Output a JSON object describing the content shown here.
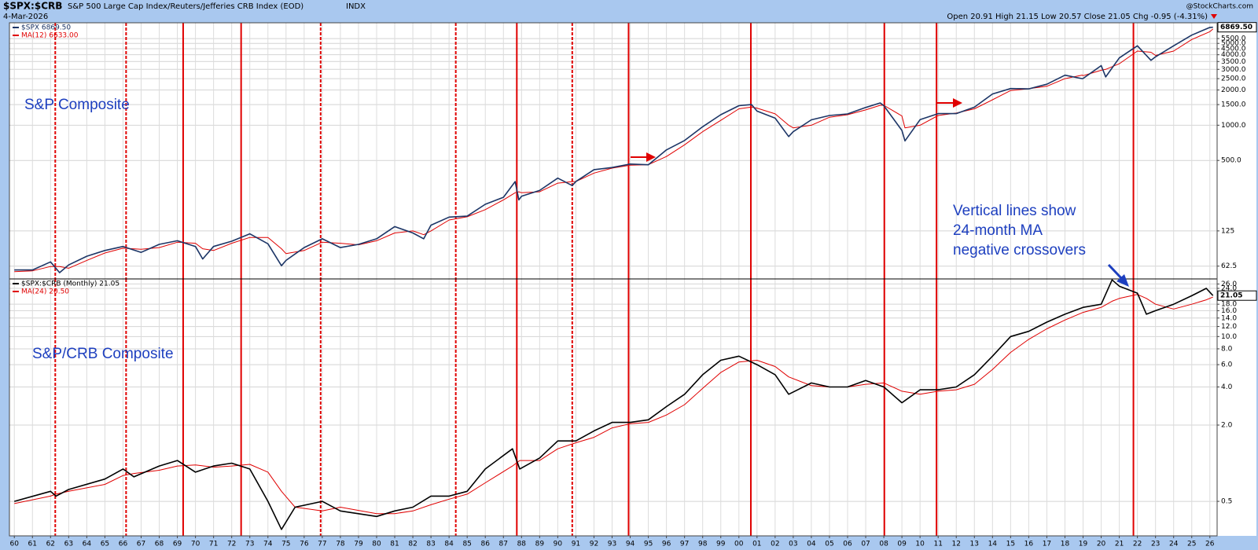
{
  "header": {
    "symbol": "$SPX:$CRB",
    "description": "S&P 500 Large Cap Index/Reuters/Jefferies CRB Index (EOD)",
    "exchange": "INDX",
    "date": "4-Mar-2026",
    "watermark": "@StockCharts.com",
    "quote": "Open 20.91 High 21.15 Low 20.57 Close 21.05 Chg -0.95 (-4.31%)"
  },
  "chart_data": [
    {
      "type": "line",
      "log_scale": true,
      "grid": true,
      "annotations": [
        "S&P Composite"
      ],
      "x": [
        1960,
        1961,
        1962,
        1962.5,
        1963,
        1964,
        1965,
        1966,
        1967,
        1968,
        1969,
        1970,
        1970.4,
        1971,
        1972,
        1973,
        1974,
        1974.75,
        1975,
        1976,
        1977,
        1978,
        1979,
        1980,
        1981,
        1982,
        1982.6,
        1983,
        1984,
        1985,
        1986,
        1987,
        1987.65,
        1987.85,
        1988,
        1989,
        1990,
        1990.8,
        1991,
        1992,
        1993,
        1994,
        1995,
        1996,
        1997,
        1998,
        1999,
        2000,
        2000.7,
        2001,
        2002,
        2002.75,
        2003,
        2004,
        2005,
        2006,
        2007,
        2007.8,
        2008,
        2009,
        2009.17,
        2010,
        2011,
        2012,
        2013,
        2014,
        2015,
        2016,
        2017,
        2018,
        2018.95,
        2019,
        2020,
        2020.25,
        2021,
        2022,
        2022.75,
        2023,
        2024,
        2025,
        2026,
        2026.17
      ],
      "series": [
        {
          "name": "$SPX 6869.50",
          "color": "#1c3566",
          "values": [
            58,
            58,
            68,
            55,
            64,
            76,
            85,
            92,
            82,
            96,
            103,
            92,
            72,
            92,
            102,
            118,
            97,
            63,
            70,
            90,
            107,
            90,
            96,
            107,
            136,
            120,
            107,
            140,
            164,
            167,
            211,
            242,
            330,
            230,
            247,
            277,
            353,
            305,
            330,
            417,
            435,
            466,
            459,
            615,
            740,
            970,
            1229,
            1469,
            1500,
            1320,
            1148,
            800,
            880,
            1111,
            1211,
            1248,
            1418,
            1550,
            1468,
            903,
            735,
            1115,
            1257,
            1257,
            1426,
            1848,
            2058,
            2043,
            2238,
            2673,
            2500,
            2506,
            3230,
            2585,
            3756,
            4766,
            3585,
            3839,
            4769,
            5881,
            6845,
            6869.5
          ]
        },
        {
          "name": "MA(12) 6633.00",
          "color": "#e00000",
          "values": [
            56,
            57,
            62,
            62,
            60,
            70,
            81,
            89,
            87,
            90,
            100,
            98,
            88,
            85,
            98,
            110,
            110,
            88,
            80,
            85,
            100,
            98,
            95,
            103,
            120,
            125,
            116,
            125,
            155,
            165,
            190,
            230,
            265,
            270,
            265,
            270,
            320,
            330,
            330,
            390,
            430,
            455,
            460,
            540,
            680,
            880,
            1100,
            1380,
            1430,
            1400,
            1250,
            1000,
            950,
            1000,
            1170,
            1230,
            1350,
            1480,
            1480,
            1200,
            950,
            1000,
            1210,
            1270,
            1380,
            1650,
            1980,
            2050,
            2150,
            2500,
            2680,
            2650,
            2950,
            3000,
            3350,
            4300,
            4200,
            3950,
            4300,
            5400,
            6300,
            6633
          ]
        }
      ],
      "current": {
        "value": 6869.5,
        "label": "6869.50"
      },
      "xlim": [
        1959.73,
        2026.4
      ],
      "ylim": [
        48.6,
        7500
      ],
      "yticks": [
        62.5,
        125,
        {
          "value": 500,
          "label": "500.0"
        },
        {
          "value": 1000,
          "label": "1000.0"
        },
        {
          "value": 1500,
          "label": "1500.0"
        },
        {
          "value": 2000,
          "label": "2000.0"
        },
        {
          "value": 2500,
          "label": "2500.0"
        },
        {
          "value": 3000,
          "label": "3000.0"
        },
        {
          "value": 3500,
          "label": "3500.0"
        },
        {
          "value": 4000,
          "label": "4000.0"
        },
        {
          "value": 4500,
          "label": "4500.0"
        },
        {
          "value": 5000,
          "label": "5000.0"
        },
        {
          "value": 5500,
          "label": "5500.0"
        }
      ],
      "vlines": [
        {
          "x": 1962.26,
          "style": "dashed"
        },
        {
          "x": 1966.17,
          "style": "dashed"
        },
        {
          "x": 1969.32,
          "style": "solid"
        },
        {
          "x": 1972.52,
          "style": "solid"
        },
        {
          "x": 1976.91,
          "style": "dashed"
        },
        {
          "x": 1984.37,
          "style": "dashed"
        },
        {
          "x": 1987.74,
          "style": "solid"
        },
        {
          "x": 1990.8,
          "style": "dashed"
        },
        {
          "x": 1993.91,
          "style": "solid"
        },
        {
          "x": 2000.66,
          "style": "solid"
        },
        {
          "x": 2008.03,
          "style": "solid"
        },
        {
          "x": 2010.91,
          "style": "solid"
        },
        {
          "x": 2021.78,
          "style": "solid"
        }
      ]
    },
    {
      "type": "line",
      "log_scale": true,
      "grid": true,
      "annotations": [
        "S&P/CRB Composite",
        "Vertical lines show",
        "24-month MA",
        "negative crossovers"
      ],
      "x": [
        1960,
        1962,
        1962.3,
        1963,
        1965,
        1966,
        1966.6,
        1968,
        1969,
        1970,
        1971,
        1972,
        1973,
        1974,
        1974.75,
        1975.5,
        1977,
        1978,
        1980,
        1981,
        1982,
        1983,
        1984,
        1985,
        1986,
        1987.5,
        1987.9,
        1989,
        1990,
        1991,
        1992,
        1993,
        1994,
        1995,
        1996,
        1997,
        1998,
        1999,
        2000,
        2001,
        2002,
        2002.75,
        2004,
        2005,
        2006,
        2007,
        2008,
        2009,
        2010,
        2011,
        2012,
        2013,
        2014,
        2015,
        2016,
        2017,
        2018,
        2019,
        2020,
        2020.6,
        2021,
        2022,
        2022.5,
        2023,
        2024,
        2025,
        2025.8,
        2026.17
      ],
      "series": [
        {
          "name": "$SPX:$CRB (Monthly) 21.05",
          "color": "#000000",
          "values": [
            0.5,
            0.6,
            0.55,
            0.62,
            0.75,
            0.9,
            0.78,
            0.95,
            1.05,
            0.85,
            0.95,
            1.0,
            0.9,
            0.5,
            0.3,
            0.45,
            0.5,
            0.42,
            0.38,
            0.42,
            0.45,
            0.55,
            0.55,
            0.6,
            0.9,
            1.3,
            0.9,
            1.1,
            1.5,
            1.5,
            1.8,
            2.1,
            2.1,
            2.2,
            2.8,
            3.5,
            5,
            6.5,
            7,
            6,
            5,
            3.5,
            4.3,
            4,
            4,
            4.5,
            4,
            3,
            3.8,
            3.8,
            4,
            5,
            7,
            10,
            11,
            13,
            15,
            17,
            18,
            28,
            25,
            22,
            15,
            16,
            18,
            21,
            24,
            21.05
          ]
        },
        {
          "name": "MA(24) 20.50",
          "color": "#e00000",
          "values": [
            0.48,
            0.55,
            0.57,
            0.6,
            0.68,
            0.8,
            0.83,
            0.88,
            0.95,
            0.97,
            0.93,
            0.95,
            0.98,
            0.85,
            0.6,
            0.45,
            0.42,
            0.45,
            0.4,
            0.4,
            0.42,
            0.47,
            0.52,
            0.57,
            0.7,
            0.95,
            1.05,
            1.05,
            1.3,
            1.45,
            1.6,
            1.9,
            2.05,
            2.1,
            2.4,
            2.9,
            3.9,
            5.2,
            6.3,
            6.5,
            5.8,
            4.8,
            4.1,
            4.0,
            4.0,
            4.2,
            4.3,
            3.7,
            3.5,
            3.7,
            3.8,
            4.2,
            5.5,
            7.5,
            9.5,
            11.5,
            13.5,
            15.5,
            17,
            19,
            20,
            21.5,
            20,
            18,
            16.5,
            18,
            19.5,
            20.5
          ]
        }
      ],
      "current": {
        "value": 21.05,
        "label": "21.05"
      },
      "xlim": [
        1959.73,
        2026.4
      ],
      "ylim": [
        0.267,
        28.5
      ],
      "yticks": [
        0.5,
        {
          "value": 2,
          "label": "2.0"
        },
        {
          "value": 4,
          "label": "4.0"
        },
        {
          "value": 6,
          "label": "6.0"
        },
        {
          "value": 8,
          "label": "8.0"
        },
        {
          "value": 10,
          "label": "10.0"
        },
        {
          "value": 12,
          "label": "12.0"
        },
        {
          "value": 14,
          "label": "14.0"
        },
        {
          "value": 16,
          "label": "16.0"
        },
        {
          "value": 18,
          "label": "18.0"
        },
        {
          "value": 24,
          "label": "24.0"
        },
        {
          "value": 26,
          "label": "26.0"
        }
      ],
      "xticks": [
        {
          "value": 1960,
          "label": "60"
        },
        {
          "value": 1961,
          "label": "61"
        },
        {
          "value": 1962,
          "label": "62"
        },
        {
          "value": 1963,
          "label": "63"
        },
        {
          "value": 1964,
          "label": "64"
        },
        {
          "value": 1965,
          "label": "65"
        },
        {
          "value": 1966,
          "label": "66"
        },
        {
          "value": 1967,
          "label": "67"
        },
        {
          "value": 1968,
          "label": "68"
        },
        {
          "value": 1969,
          "label": "69"
        },
        {
          "value": 1970,
          "label": "70"
        },
        {
          "value": 1971,
          "label": "71"
        },
        {
          "value": 1972,
          "label": "72"
        },
        {
          "value": 1973,
          "label": "73"
        },
        {
          "value": 1974,
          "label": "74"
        },
        {
          "value": 1975,
          "label": "75"
        },
        {
          "value": 1976,
          "label": "76"
        },
        {
          "value": 1977,
          "label": "77"
        },
        {
          "value": 1978,
          "label": "78"
        },
        {
          "value": 1979,
          "label": "79"
        },
        {
          "value": 1980,
          "label": "80"
        },
        {
          "value": 1981,
          "label": "81"
        },
        {
          "value": 1982,
          "label": "82"
        },
        {
          "value": 1983,
          "label": "83"
        },
        {
          "value": 1984,
          "label": "84"
        },
        {
          "value": 1985,
          "label": "85"
        },
        {
          "value": 1986,
          "label": "86"
        },
        {
          "value": 1987,
          "label": "87"
        },
        {
          "value": 1988,
          "label": "88"
        },
        {
          "value": 1989,
          "label": "89"
        },
        {
          "value": 1990,
          "label": "90"
        },
        {
          "value": 1991,
          "label": "91"
        },
        {
          "value": 1992,
          "label": "92"
        },
        {
          "value": 1993,
          "label": "93"
        },
        {
          "value": 1994,
          "label": "94"
        },
        {
          "value": 1995,
          "label": "95"
        },
        {
          "value": 1996,
          "label": "96"
        },
        {
          "value": 1997,
          "label": "97"
        },
        {
          "value": 1998,
          "label": "98"
        },
        {
          "value": 1999,
          "label": "99"
        },
        {
          "value": 2000,
          "label": "00"
        },
        {
          "value": 2001,
          "label": "01"
        },
        {
          "value": 2002,
          "label": "02"
        },
        {
          "value": 2003,
          "label": "03"
        },
        {
          "value": 2004,
          "label": "04"
        },
        {
          "value": 2005,
          "label": "05"
        },
        {
          "value": 2006,
          "label": "06"
        },
        {
          "value": 2007,
          "label": "07"
        },
        {
          "value": 2008,
          "label": "08"
        },
        {
          "value": 2009,
          "label": "09"
        },
        {
          "value": 2010,
          "label": "10"
        },
        {
          "value": 2011,
          "label": "11"
        },
        {
          "value": 2012,
          "label": "12"
        },
        {
          "value": 2013,
          "label": "13"
        },
        {
          "value": 2014,
          "label": "14"
        },
        {
          "value": 2015,
          "label": "15"
        },
        {
          "value": 2016,
          "label": "16"
        },
        {
          "value": 2017,
          "label": "17"
        },
        {
          "value": 2018,
          "label": "18"
        },
        {
          "value": 2019,
          "label": "19"
        },
        {
          "value": 2020,
          "label": "20"
        },
        {
          "value": 2021,
          "label": "21"
        },
        {
          "value": 2022,
          "label": "22"
        },
        {
          "value": 2023,
          "label": "23"
        },
        {
          "value": 2024,
          "label": "24"
        },
        {
          "value": 2025,
          "label": "25"
        },
        {
          "value": 2026,
          "label": "26"
        }
      ],
      "vlines": [
        {
          "x": 1962.26,
          "style": "dashed"
        },
        {
          "x": 1966.17,
          "style": "dashed"
        },
        {
          "x": 1969.32,
          "style": "solid"
        },
        {
          "x": 1972.52,
          "style": "solid"
        },
        {
          "x": 1976.91,
          "style": "dashed"
        },
        {
          "x": 1984.37,
          "style": "dashed"
        },
        {
          "x": 1987.74,
          "style": "solid"
        },
        {
          "x": 1990.8,
          "style": "dashed"
        },
        {
          "x": 1993.91,
          "style": "solid"
        },
        {
          "x": 2000.66,
          "style": "solid"
        },
        {
          "x": 2008.03,
          "style": "solid"
        },
        {
          "x": 2010.91,
          "style": "solid"
        },
        {
          "x": 2021.78,
          "style": "solid"
        }
      ]
    }
  ]
}
